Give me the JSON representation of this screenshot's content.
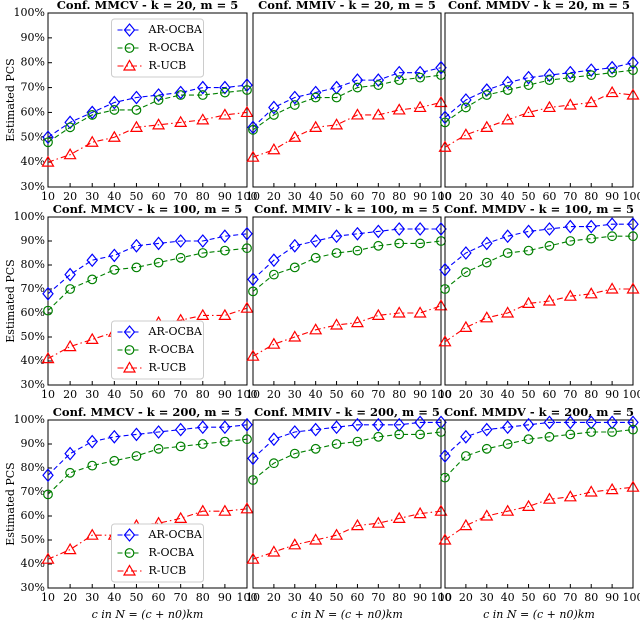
{
  "chart_data": [
    {
      "type": "line",
      "title": "Conf. MMCV - k = 20, m = 5",
      "ylabel": "Estimated PCS",
      "legend": "upper center",
      "x": [
        10,
        20,
        30,
        40,
        50,
        60,
        70,
        80,
        90,
        100
      ],
      "xlim": [
        10,
        100
      ],
      "xticks": [
        10,
        20,
        30,
        40,
        50,
        60,
        70,
        80,
        90,
        100
      ],
      "ylim": [
        30,
        100
      ],
      "yticks": [
        {
          "value": 30,
          "label": "30%"
        },
        {
          "value": 40,
          "label": "40%"
        },
        {
          "value": 50,
          "label": "50%"
        },
        {
          "value": 60,
          "label": "60%"
        },
        {
          "value": 70,
          "label": "70%"
        },
        {
          "value": 80,
          "label": "80%"
        },
        {
          "value": 90,
          "label": "90%"
        },
        {
          "value": 100,
          "label": "100%"
        }
      ],
      "series": [
        {
          "name": "AR-OCBA",
          "color": "#0000ff",
          "marker": "diamond",
          "dash": "dashed",
          "values": [
            50,
            56,
            60,
            64,
            66,
            67,
            68,
            70,
            70,
            71
          ]
        },
        {
          "name": "R-OCBA",
          "color": "#008000",
          "marker": "circle",
          "dash": "dashed",
          "values": [
            48,
            54,
            59,
            61,
            61,
            65,
            67,
            67,
            68,
            69
          ]
        },
        {
          "name": "R-UCB",
          "color": "#ff0000",
          "marker": "triangle",
          "dash": "dashdot",
          "values": [
            40,
            43,
            48,
            50,
            54,
            55,
            56,
            57,
            59,
            60
          ]
        }
      ]
    },
    {
      "type": "line",
      "title": "Conf. MMIV - k = 20, m = 5",
      "x": [
        10,
        20,
        30,
        40,
        50,
        60,
        70,
        80,
        90,
        100
      ],
      "xlim": [
        10,
        100
      ],
      "xticks": [
        10,
        20,
        30,
        40,
        50,
        60,
        70,
        80,
        90,
        100
      ],
      "ylim": [
        30,
        100
      ],
      "series": [
        {
          "color": "#0000ff",
          "marker": "diamond",
          "dash": "dashed",
          "values": [
            54,
            62,
            66,
            68,
            70,
            73,
            73,
            76,
            76,
            78
          ]
        },
        {
          "color": "#008000",
          "marker": "circle",
          "dash": "dashed",
          "values": [
            53,
            59,
            63,
            66,
            66,
            70,
            71,
            73,
            74,
            75
          ]
        },
        {
          "color": "#ff0000",
          "marker": "triangle",
          "dash": "dashdot",
          "values": [
            42,
            45,
            50,
            54,
            55,
            59,
            59,
            61,
            62,
            64
          ]
        }
      ]
    },
    {
      "type": "line",
      "title": "Conf. MMDV - k = 20, m = 5",
      "x": [
        10,
        20,
        30,
        40,
        50,
        60,
        70,
        80,
        90,
        100
      ],
      "xlim": [
        10,
        100
      ],
      "xticks": [
        10,
        20,
        30,
        40,
        50,
        60,
        70,
        80,
        90,
        100
      ],
      "ylim": [
        30,
        100
      ],
      "series": [
        {
          "color": "#0000ff",
          "marker": "diamond",
          "dash": "dashed",
          "values": [
            58,
            65,
            69,
            72,
            74,
            75,
            76,
            77,
            78,
            80
          ]
        },
        {
          "color": "#008000",
          "marker": "circle",
          "dash": "dashed",
          "values": [
            56,
            62,
            67,
            69,
            71,
            73,
            74,
            75,
            76,
            77
          ]
        },
        {
          "color": "#ff0000",
          "marker": "triangle",
          "dash": "dashdot",
          "values": [
            46,
            51,
            54,
            57,
            60,
            62,
            63,
            64,
            68,
            67
          ]
        }
      ]
    },
    {
      "type": "line",
      "title": "Conf. MMCV - k = 100, m = 5",
      "ylabel": "Estimated PCS",
      "legend": "lower center",
      "x": [
        10,
        20,
        30,
        40,
        50,
        60,
        70,
        80,
        90,
        100
      ],
      "xlim": [
        10,
        100
      ],
      "xticks": [
        10,
        20,
        30,
        40,
        50,
        60,
        70,
        80,
        90,
        100
      ],
      "ylim": [
        30,
        100
      ],
      "yticks": [
        {
          "value": 30,
          "label": "30%"
        },
        {
          "value": 40,
          "label": "40%"
        },
        {
          "value": 50,
          "label": "50%"
        },
        {
          "value": 60,
          "label": "60%"
        },
        {
          "value": 70,
          "label": "70%"
        },
        {
          "value": 80,
          "label": "80%"
        },
        {
          "value": 90,
          "label": "90%"
        },
        {
          "value": 100,
          "label": "100%"
        }
      ],
      "series": [
        {
          "name": "AR-OCBA",
          "color": "#0000ff",
          "marker": "diamond",
          "dash": "dashed",
          "values": [
            68,
            76,
            82,
            84,
            88,
            89,
            90,
            90,
            92,
            93
          ]
        },
        {
          "name": "R-OCBA",
          "color": "#008000",
          "marker": "circle",
          "dash": "dashed",
          "values": [
            61,
            70,
            74,
            78,
            79,
            81,
            83,
            85,
            86,
            87
          ]
        },
        {
          "name": "R-UCB",
          "color": "#ff0000",
          "marker": "triangle",
          "dash": "dashdot",
          "values": [
            41,
            46,
            49,
            52,
            54,
            56,
            57,
            59,
            59,
            62
          ]
        }
      ]
    },
    {
      "type": "line",
      "title": "Conf. MMIV - k = 100, m = 5",
      "x": [
        10,
        20,
        30,
        40,
        50,
        60,
        70,
        80,
        90,
        100
      ],
      "xlim": [
        10,
        100
      ],
      "xticks": [
        10,
        20,
        30,
        40,
        50,
        60,
        70,
        80,
        90,
        100
      ],
      "ylim": [
        30,
        100
      ],
      "series": [
        {
          "color": "#0000ff",
          "marker": "diamond",
          "dash": "dashed",
          "values": [
            74,
            82,
            88,
            90,
            92,
            93,
            94,
            95,
            95,
            95
          ]
        },
        {
          "color": "#008000",
          "marker": "circle",
          "dash": "dashed",
          "values": [
            69,
            76,
            79,
            83,
            85,
            86,
            88,
            89,
            89,
            90
          ]
        },
        {
          "color": "#ff0000",
          "marker": "triangle",
          "dash": "dashdot",
          "values": [
            42,
            47,
            50,
            53,
            55,
            56,
            59,
            60,
            60,
            63
          ]
        }
      ]
    },
    {
      "type": "line",
      "title": "Conf. MMDV - k = 100, m = 5",
      "x": [
        10,
        20,
        30,
        40,
        50,
        60,
        70,
        80,
        90,
        100
      ],
      "xlim": [
        10,
        100
      ],
      "xticks": [
        10,
        20,
        30,
        40,
        50,
        60,
        70,
        80,
        90,
        100
      ],
      "ylim": [
        30,
        100
      ],
      "series": [
        {
          "color": "#0000ff",
          "marker": "diamond",
          "dash": "dashed",
          "values": [
            78,
            85,
            89,
            92,
            94,
            95,
            96,
            96,
            97,
            97
          ]
        },
        {
          "color": "#008000",
          "marker": "circle",
          "dash": "dashed",
          "values": [
            70,
            77,
            81,
            85,
            86,
            88,
            90,
            91,
            92,
            92
          ]
        },
        {
          "color": "#ff0000",
          "marker": "triangle",
          "dash": "dashdot",
          "values": [
            48,
            54,
            58,
            60,
            64,
            65,
            67,
            68,
            70,
            70
          ]
        }
      ]
    },
    {
      "type": "line",
      "title": "Conf. MMCV - k = 200, m = 5",
      "ylabel": "Estimated PCS",
      "xlabel": "c  in N = (c + n0)km",
      "legend": "lower center",
      "x": [
        10,
        20,
        30,
        40,
        50,
        60,
        70,
        80,
        90,
        100
      ],
      "xlim": [
        10,
        100
      ],
      "xticks": [
        10,
        20,
        30,
        40,
        50,
        60,
        70,
        80,
        90,
        100
      ],
      "ylim": [
        30,
        100
      ],
      "yticks": [
        {
          "value": 30,
          "label": "30%"
        },
        {
          "value": 40,
          "label": "40%"
        },
        {
          "value": 50,
          "label": "50%"
        },
        {
          "value": 60,
          "label": "60%"
        },
        {
          "value": 70,
          "label": "70%"
        },
        {
          "value": 80,
          "label": "80%"
        },
        {
          "value": 90,
          "label": "90%"
        },
        {
          "value": 100,
          "label": "100%"
        }
      ],
      "series": [
        {
          "name": "AR-OCBA",
          "color": "#0000ff",
          "marker": "diamond",
          "dash": "dashed",
          "values": [
            77,
            86,
            91,
            93,
            94,
            95,
            96,
            97,
            97,
            98
          ]
        },
        {
          "name": "R-OCBA",
          "color": "#008000",
          "marker": "circle",
          "dash": "dashed",
          "values": [
            69,
            78,
            81,
            83,
            85,
            88,
            89,
            90,
            91,
            92
          ]
        },
        {
          "name": "R-UCB",
          "color": "#ff0000",
          "marker": "triangle",
          "dash": "dashdot",
          "values": [
            42,
            46,
            52,
            52,
            56,
            57,
            59,
            62,
            62,
            63
          ]
        }
      ]
    },
    {
      "type": "line",
      "title": "Conf. MMIV - k = 200, m = 5",
      "xlabel": "c  in N = (c + n0)km",
      "x": [
        10,
        20,
        30,
        40,
        50,
        60,
        70,
        80,
        90,
        100
      ],
      "xlim": [
        10,
        100
      ],
      "xticks": [
        10,
        20,
        30,
        40,
        50,
        60,
        70,
        80,
        90,
        100
      ],
      "ylim": [
        30,
        100
      ],
      "series": [
        {
          "color": "#0000ff",
          "marker": "diamond",
          "dash": "dashed",
          "values": [
            84,
            92,
            95,
            96,
            97,
            98,
            98,
            98,
            99,
            99
          ]
        },
        {
          "color": "#008000",
          "marker": "circle",
          "dash": "dashed",
          "values": [
            75,
            82,
            86,
            88,
            90,
            91,
            93,
            94,
            94,
            95
          ]
        },
        {
          "color": "#ff0000",
          "marker": "triangle",
          "dash": "dashdot",
          "values": [
            42,
            45,
            48,
            50,
            52,
            56,
            57,
            59,
            61,
            62
          ]
        }
      ]
    },
    {
      "type": "line",
      "title": "Conf. MMDV - k = 200, m = 5",
      "xlabel": "c  in N = (c + n0)km",
      "x": [
        10,
        20,
        30,
        40,
        50,
        60,
        70,
        80,
        90,
        100
      ],
      "xlim": [
        10,
        100
      ],
      "xticks": [
        10,
        20,
        30,
        40,
        50,
        60,
        70,
        80,
        90,
        100
      ],
      "ylim": [
        30,
        100
      ],
      "series": [
        {
          "color": "#0000ff",
          "marker": "diamond",
          "dash": "dashed",
          "values": [
            85,
            93,
            96,
            97,
            98,
            99,
            99,
            99,
            99,
            99
          ]
        },
        {
          "color": "#008000",
          "marker": "circle",
          "dash": "dashed",
          "values": [
            76,
            85,
            88,
            90,
            92,
            93,
            94,
            95,
            95,
            96
          ]
        },
        {
          "color": "#ff0000",
          "marker": "triangle",
          "dash": "dashdot",
          "values": [
            50,
            56,
            60,
            62,
            64,
            67,
            68,
            70,
            71,
            72
          ]
        }
      ]
    }
  ]
}
